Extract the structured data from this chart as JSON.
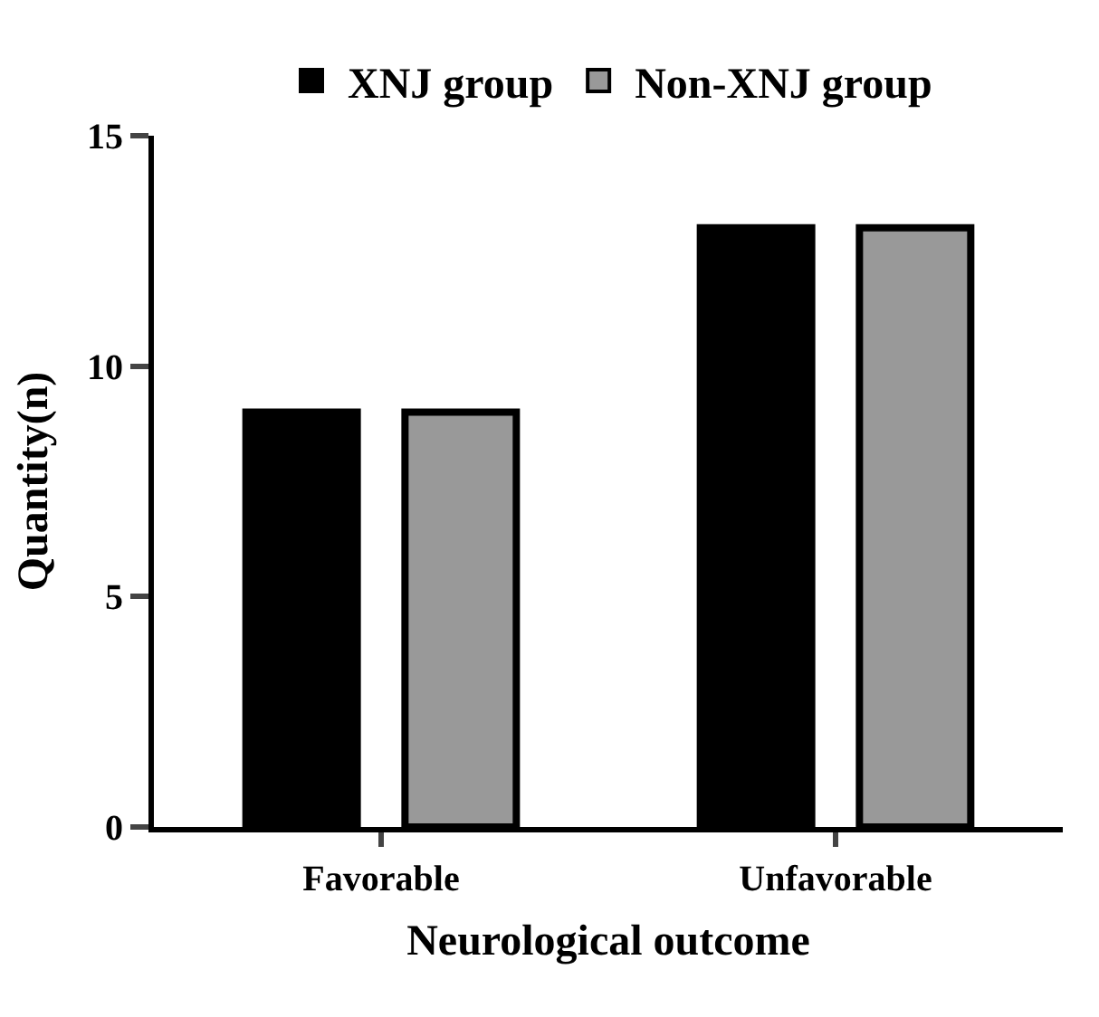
{
  "chart_data": {
    "type": "bar",
    "xlabel": "Neurological outcome",
    "ylabel": "Quantity(n)",
    "categories": [
      "Favorable",
      "Unfavorable"
    ],
    "series": [
      {
        "name": "XNJ group",
        "color": "#000000",
        "values": [
          9,
          13
        ]
      },
      {
        "name": "Non-XNJ group",
        "color": "#999999",
        "values": [
          9,
          13
        ]
      }
    ],
    "ylim": [
      0,
      15
    ],
    "yticks": [
      0,
      5,
      10,
      15
    ],
    "legend": "top"
  }
}
